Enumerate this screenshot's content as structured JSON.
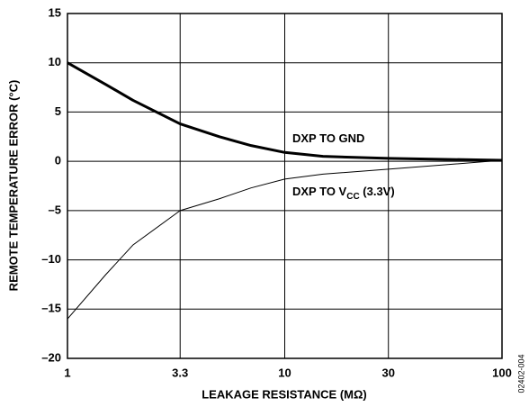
{
  "chart_data": {
    "type": "line",
    "xlabel": "LEAKAGE RESISTANCE (MΩ)",
    "ylabel": "REMOTE TEMPERATURE ERROR (°C)",
    "side_note": "02402-004",
    "x": [
      1,
      1.5,
      2,
      3.3,
      5,
      7,
      10,
      15,
      30,
      100
    ],
    "series": [
      {
        "name": "DXP TO GND",
        "color": "#000000",
        "line_width": 3,
        "values": [
          10,
          7.8,
          6.2,
          3.8,
          2.5,
          1.6,
          0.9,
          0.5,
          0.3,
          0.1
        ]
      },
      {
        "name": "DXP TO V",
        "name_sub": "CC",
        "name_suffix": " (3.3V)",
        "color": "#000000",
        "line_width": 1,
        "values": [
          -16,
          -11.5,
          -8.5,
          -5,
          -3.8,
          -2.7,
          -1.8,
          -1.3,
          -0.8,
          0.1
        ]
      }
    ],
    "xscale": "log",
    "xlim": [
      1,
      100
    ],
    "xticks": [
      1,
      3.3,
      10,
      30,
      100
    ],
    "ylim": [
      -20,
      15
    ],
    "yticks": [
      {
        "value": -20,
        "label": "–20"
      },
      {
        "value": -15,
        "label": "–15"
      },
      {
        "value": -10,
        "label": "–10"
      },
      {
        "value": -5,
        "label": "–5"
      },
      0,
      5,
      10,
      15
    ],
    "grid": true
  }
}
